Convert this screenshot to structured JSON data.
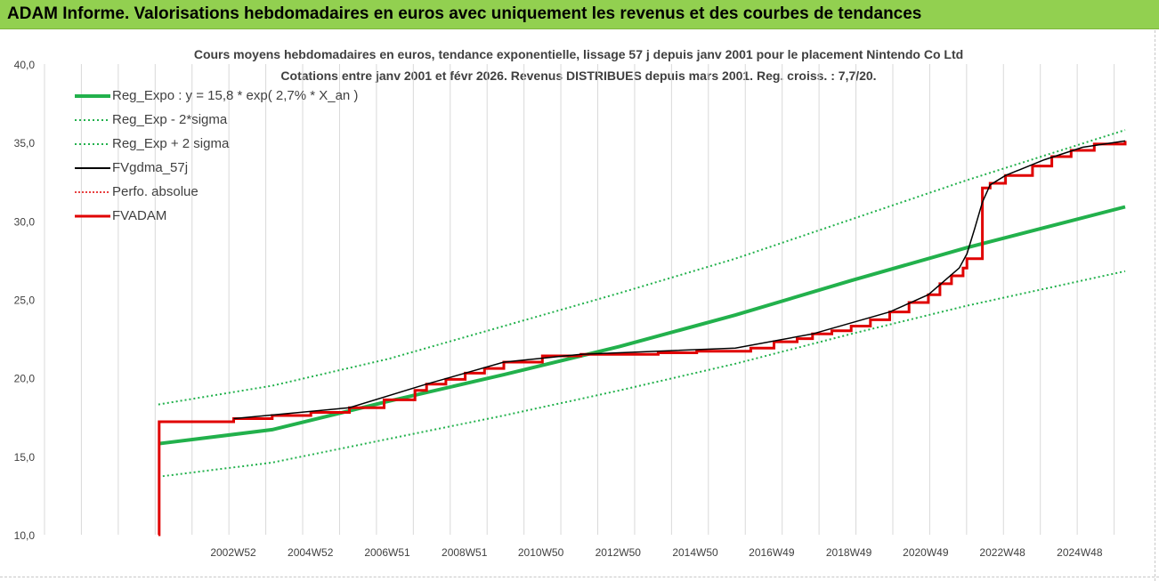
{
  "header": {
    "title": "ADAM Informe. Valorisations hebdomadaires en euros avec uniquement les revenus et des courbes de tendances"
  },
  "chart_data": {
    "type": "line",
    "title_line1": "Cours moyens hebdomadaires en euros, tendance exponentielle, lissage 57 j depuis janv 2001 pour le placement Nintendo Co Ltd",
    "title_line2": "Cotations entre janv 2001 et févr 2026. Revenus DISTRIBUES depuis mars 2001. Reg. croiss. : 7,7/20.",
    "xlabel": "",
    "ylabel": "",
    "ylim": [
      10,
      40
    ],
    "xlim": [
      1998.1,
      2026.1
    ],
    "yticks": [
      "10,0",
      "15,0",
      "20,0",
      "25,0",
      "30,0",
      "35,0",
      "40,0"
    ],
    "ytick_values": [
      10,
      15,
      20,
      25,
      30,
      35,
      40
    ],
    "xticks": [
      "2002W52",
      "2004W52",
      "2006W51",
      "2008W51",
      "2010W50",
      "2012W50",
      "2014W50",
      "2016W49",
      "2018W49",
      "2020W49",
      "2022W48",
      "2024W48"
    ],
    "xtick_values": [
      2002.99,
      2004.99,
      2006.98,
      2008.98,
      2010.96,
      2012.96,
      2014.96,
      2016.94,
      2018.94,
      2020.93,
      2022.92,
      2024.92
    ],
    "grid": "vertical",
    "legend_position": "top-left",
    "colors": {
      "reg": "#22b14c",
      "band": "#22b14c",
      "fvgdma": "#000000",
      "perfo": "#e00000",
      "fvadam": "#e00000"
    },
    "legend": [
      {
        "name": "Reg_Expo : y = 15,8 * exp( 2,7% *  X_an )",
        "style": "solid-thick-green"
      },
      {
        "name": "Reg_Exp - 2*sigma",
        "style": "dotted-green"
      },
      {
        "name": "Reg_Exp + 2 sigma",
        "style": "dotted-green"
      },
      {
        "name": "FVgdma_57j",
        "style": "solid-black"
      },
      {
        "name": "Perfo. absolue",
        "style": "dotted-red"
      },
      {
        "name": "FVADAM",
        "style": "solid-red"
      }
    ],
    "series": [
      {
        "name": "Reg_Expo : y = 15,8 * exp( 2,7% *  X_an )",
        "x": [
          2001.05,
          2004,
          2007,
          2010,
          2013,
          2016,
          2019,
          2022,
          2026.1
        ],
        "y": [
          15.8,
          16.7,
          18.5,
          20.2,
          22.0,
          24.0,
          26.2,
          28.3,
          30.9
        ]
      },
      {
        "name": "Reg_Exp - 2*sigma",
        "x": [
          2001.05,
          2004,
          2007,
          2010,
          2013,
          2016,
          2019,
          2022,
          2026.1
        ],
        "y": [
          13.7,
          14.6,
          16.1,
          17.6,
          19.2,
          20.9,
          22.8,
          24.6,
          26.8
        ]
      },
      {
        "name": "Reg_Exp + 2 sigma",
        "x": [
          2001.05,
          2004,
          2007,
          2010,
          2013,
          2016,
          2019,
          2022,
          2026.1
        ],
        "y": [
          18.3,
          19.5,
          21.2,
          23.3,
          25.4,
          27.6,
          30.1,
          32.6,
          35.8
        ]
      },
      {
        "name": "FVADAM",
        "x": [
          2001.05,
          2001.07,
          2003,
          2004,
          2005,
          2006,
          2006.9,
          2007,
          2007.7,
          2008,
          2008.5,
          2009,
          2009.5,
          2010,
          2011,
          2012,
          2014,
          2015,
          2016.4,
          2017,
          2017.6,
          2018,
          2018.5,
          2019,
          2019.5,
          2020,
          2020.5,
          2021,
          2021.3,
          2021.6,
          2021.9,
          2022,
          2022.2,
          2022.4,
          2022.6,
          2023,
          2023.7,
          2024.2,
          2024.7,
          2025.3,
          2026.1
        ],
        "y": [
          10.0,
          17.2,
          17.4,
          17.6,
          17.8,
          18.1,
          18.6,
          18.6,
          19.2,
          19.6,
          19.9,
          20.3,
          20.6,
          21.0,
          21.4,
          21.5,
          21.6,
          21.7,
          21.9,
          22.3,
          22.5,
          22.8,
          23.0,
          23.3,
          23.7,
          24.2,
          24.8,
          25.3,
          26.0,
          26.5,
          27.0,
          27.6,
          27.6,
          32.1,
          32.4,
          32.9,
          33.5,
          34.1,
          34.5,
          34.9,
          35.1
        ]
      },
      {
        "name": "FVgdma_57j",
        "x": [
          2003,
          2006,
          2008,
          2010,
          2012,
          2016,
          2018,
          2020,
          2021,
          2021.8,
          2022.0,
          2022.2,
          2022.4,
          2022.6,
          2023,
          2024,
          2025,
          2026.1
        ],
        "y": [
          17.4,
          18.1,
          19.6,
          21.0,
          21.5,
          21.9,
          22.8,
          24.2,
          25.3,
          27.0,
          27.9,
          29.5,
          31.2,
          32.3,
          32.9,
          33.9,
          34.7,
          35.1
        ]
      }
    ]
  }
}
